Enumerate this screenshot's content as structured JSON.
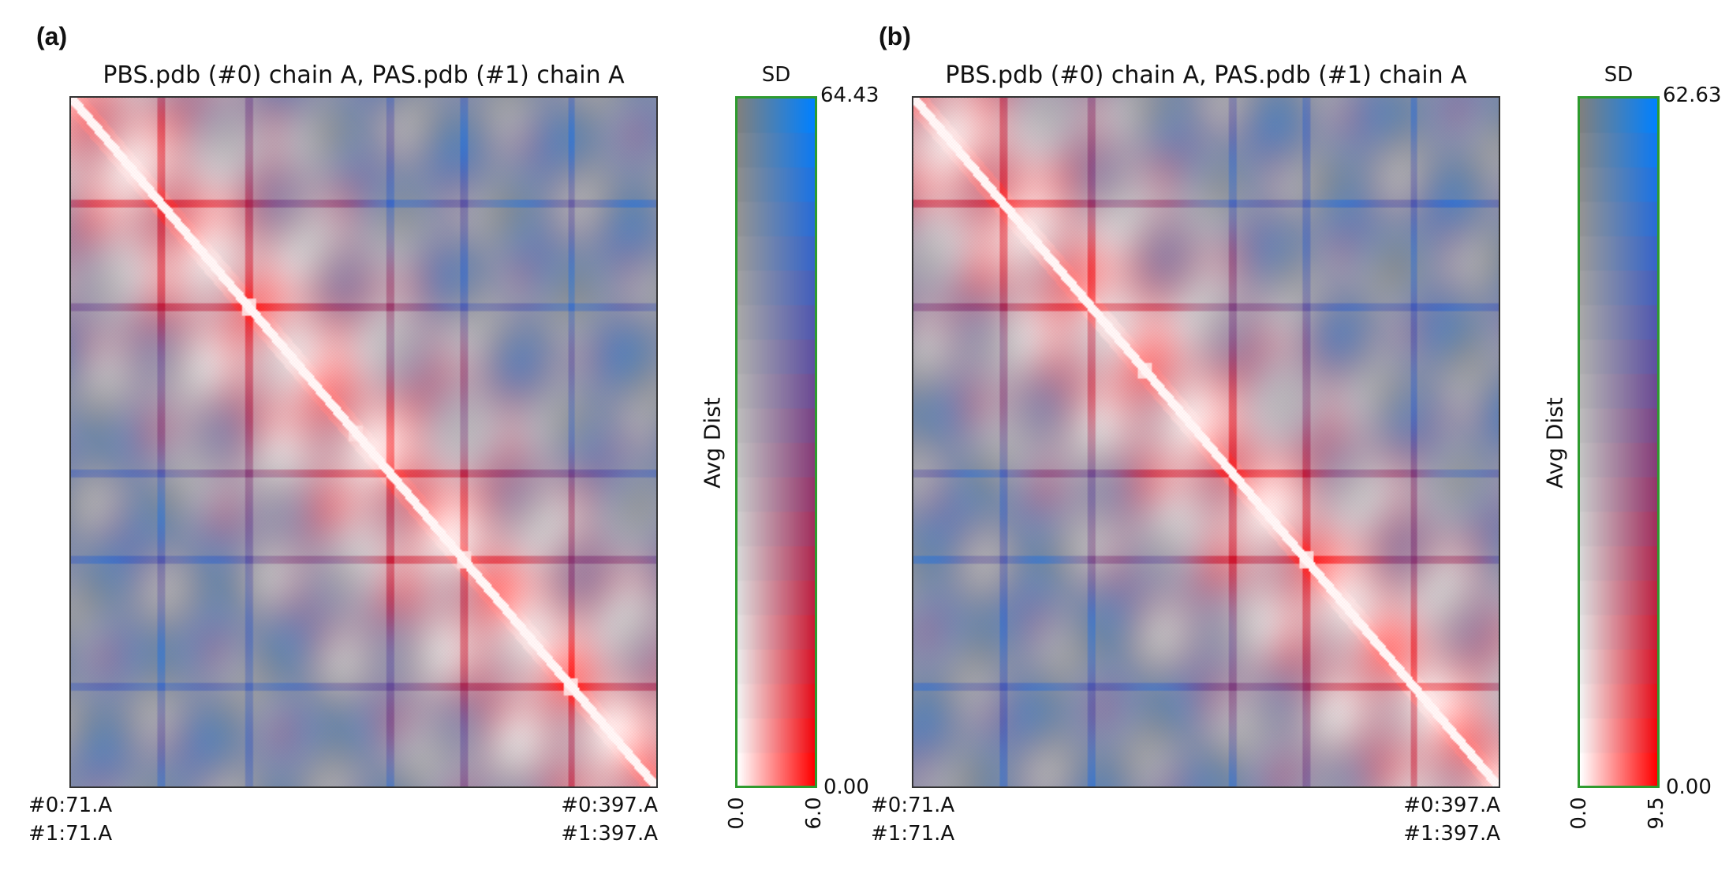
{
  "chart_data": [
    {
      "type": "heatmap",
      "panel_label": "(a)",
      "title": "PBS.pdb (#0) chain A, PAS.pdb (#1) chain A",
      "x_start_labels": [
        "#0:71.A",
        "#1:71.A"
      ],
      "x_end_labels": [
        "#0:397.A",
        "#1:397.A"
      ],
      "residue_range": [
        71,
        397
      ],
      "colorbar": {
        "vertical_label": "Avg Dist",
        "horizontal_label": "SD",
        "vertical_range": [
          0.0,
          64.43
        ],
        "vertical_max_label": "64.43",
        "vertical_min_label": "0.00",
        "horizontal_range": [
          0.0,
          6.0
        ],
        "horizontal_min_label": "0.0",
        "horizontal_max_label": "6.0",
        "colors": {
          "low_low": "#ffffff",
          "low_high": "#ff0000",
          "high_low": "#808080",
          "high_high": "#0080ff"
        }
      },
      "domain_boundaries_residue": [
        121,
        170,
        249,
        290,
        350
      ],
      "bright_junctions_residue": [
        170,
        230,
        290,
        350
      ]
    },
    {
      "type": "heatmap",
      "panel_label": "(b)",
      "title": "PBS.pdb (#0) chain A, PAS.pdb (#1) chain A",
      "x_start_labels": [
        "#0:71.A",
        "#1:71.A"
      ],
      "x_end_labels": [
        "#0:397.A",
        "#1:397.A"
      ],
      "residue_range": [
        71,
        397
      ],
      "colorbar": {
        "vertical_label": "Avg Dist",
        "horizontal_label": "SD",
        "vertical_range": [
          0.0,
          62.63
        ],
        "vertical_max_label": "62.63",
        "vertical_min_label": "0.00",
        "horizontal_range": [
          0.0,
          9.5
        ],
        "horizontal_min_label": "0.0",
        "horizontal_max_label": "9.5",
        "colors": {
          "low_low": "#ffffff",
          "low_high": "#ff0000",
          "high_low": "#808080",
          "high_high": "#0080ff"
        }
      },
      "domain_boundaries_residue": [
        121,
        170,
        249,
        290,
        350
      ],
      "bright_junctions_residue": [
        200,
        290
      ]
    }
  ]
}
